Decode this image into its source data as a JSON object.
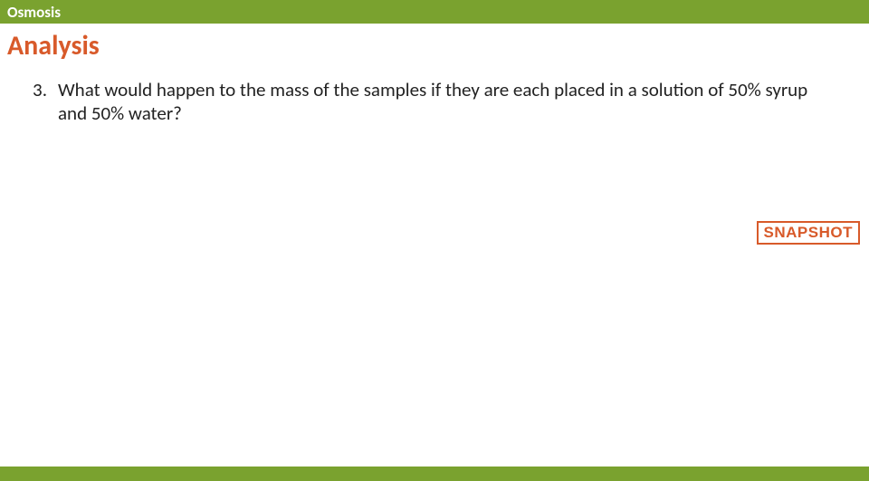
{
  "style": {
    "topbar_bg": "#7aa22f",
    "topbar_fg": "#ffffff",
    "heading_color": "#d85a2a",
    "snapshot_border": "#d85a2a",
    "snapshot_fg": "#d85a2a",
    "bottombar_bg": "#7aa22f",
    "body_text_color": "#2a2a2a"
  },
  "topbar": {
    "title": "Osmosis"
  },
  "heading": "Analysis",
  "question": {
    "number": "3.",
    "text": "What would happen to the mass of the samples if they are each placed in a solution of 50% syrup and 50% water?"
  },
  "snapshot_label": "SNAPSHOT"
}
